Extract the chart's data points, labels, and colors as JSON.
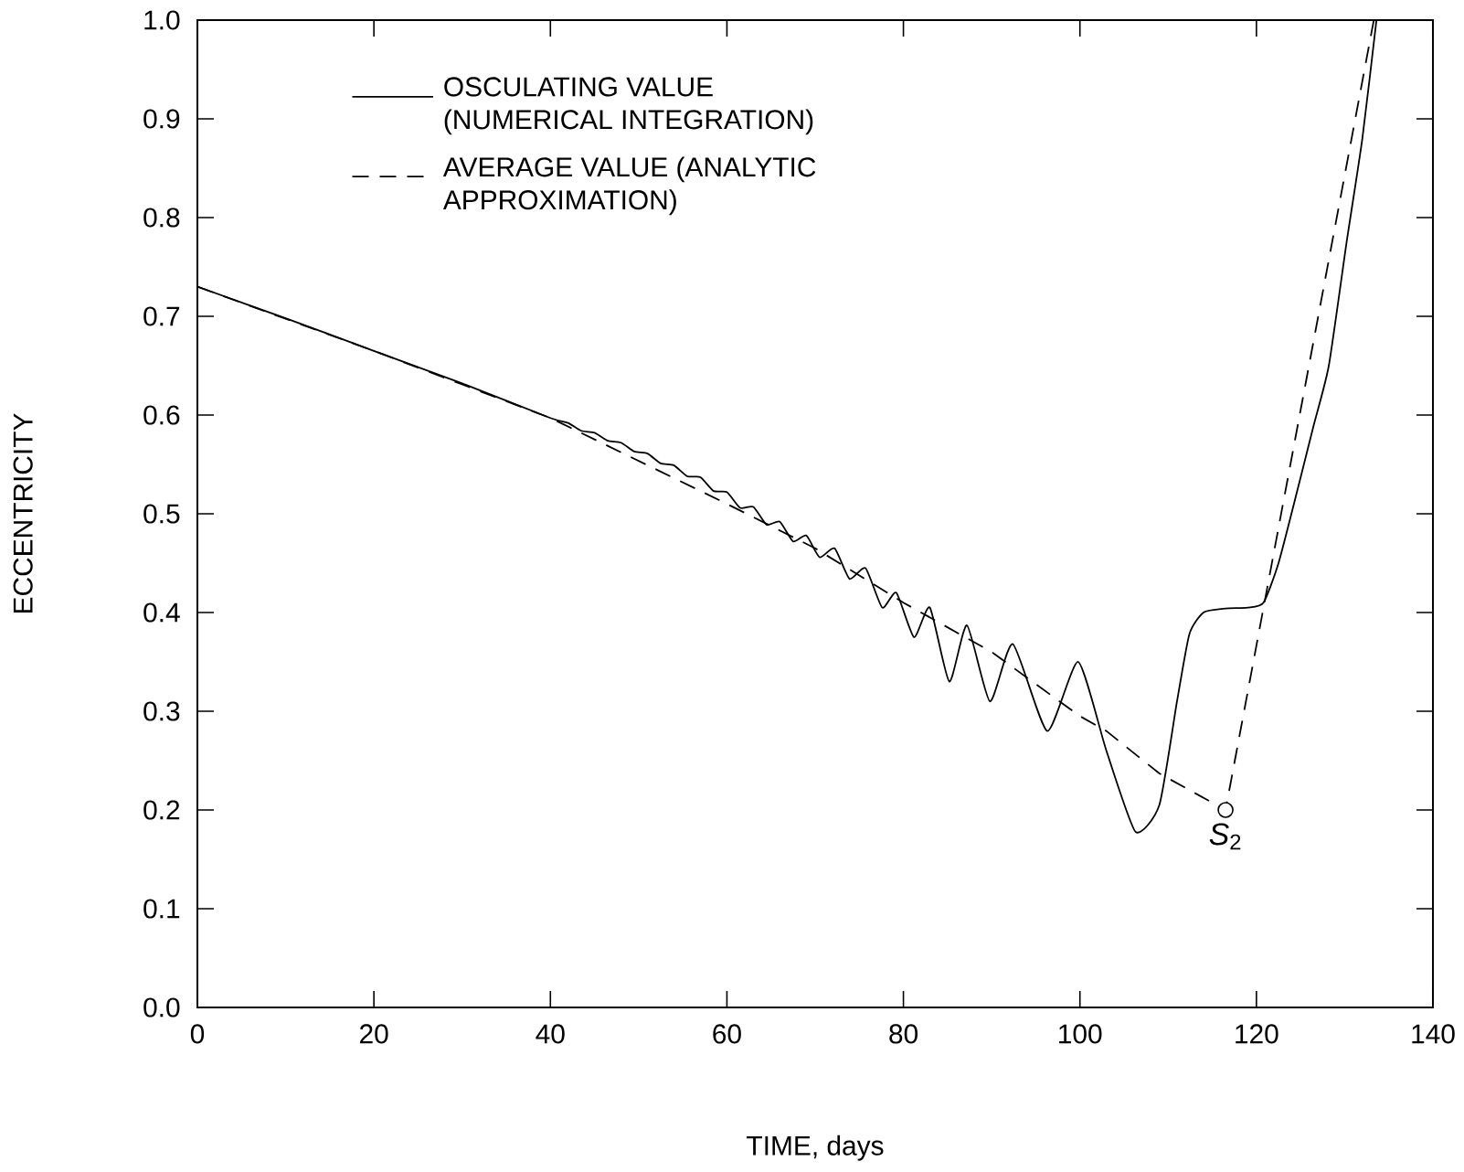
{
  "chart_data": {
    "type": "line",
    "xlabel": "TIME, days",
    "ylabel": "ECCENTRICITY",
    "xlim": [
      0,
      140
    ],
    "xticks": [
      0,
      20,
      40,
      60,
      80,
      100,
      120,
      140
    ],
    "ylim": [
      0,
      1
    ],
    "yticks": [
      {
        "value": 0,
        "label": "0.0"
      },
      0.1,
      0.2,
      0.3,
      0.4,
      0.5,
      0.6,
      0.7,
      0.8,
      0.9,
      {
        "value": 1,
        "label": "1.0"
      }
    ],
    "grid": false,
    "legend": "top left",
    "marker": "none",
    "series": [
      {
        "name": "OSCULATING VALUE (NUMERICAL INTEGRATION)",
        "color": "#000000",
        "line_style": "solid",
        "x": [
          0,
          10,
          20,
          30,
          40,
          42,
          43.5,
          45,
          46.5,
          48,
          49.5,
          51,
          52.5,
          54,
          55.5,
          57,
          58.5,
          60,
          61.5,
          63,
          64.5,
          66,
          67.5,
          69,
          70.5,
          72.2,
          73.9,
          75.7,
          77.6,
          79.2,
          81.2,
          83.0,
          85.2,
          87.2,
          89.8,
          92.4,
          96.3,
          99.8,
          103,
          106.3,
          109,
          111,
          112.4,
          114,
          116.5,
          119,
          120.8,
          122.5,
          124.7,
          126.5,
          128.2,
          130.2,
          132,
          133.6
        ],
        "values": [
          0.73,
          0.698,
          0.665,
          0.632,
          0.597,
          0.592,
          0.584,
          0.582,
          0.574,
          0.572,
          0.563,
          0.561,
          0.551,
          0.549,
          0.538,
          0.537,
          0.523,
          0.522,
          0.506,
          0.507,
          0.489,
          0.492,
          0.472,
          0.478,
          0.456,
          0.465,
          0.434,
          0.445,
          0.405,
          0.42,
          0.375,
          0.405,
          0.33,
          0.387,
          0.31,
          0.368,
          0.28,
          0.35,
          0.26,
          0.178,
          0.205,
          0.31,
          0.378,
          0.4,
          0.404,
          0.405,
          0.41,
          0.45,
          0.526,
          0.59,
          0.65,
          0.774,
          0.88,
          1.0
        ]
      },
      {
        "name": "AVERAGE VALUE (ANALYTIC APPROXIMATION)",
        "color": "#000000",
        "line_style": "dashed",
        "x": [
          0,
          20,
          40,
          60,
          70,
          80,
          90,
          100,
          103,
          109,
          116.5,
          133.3
        ],
        "values": [
          0.73,
          0.665,
          0.597,
          0.51,
          0.465,
          0.41,
          0.36,
          0.295,
          0.28,
          0.237,
          0.2,
          1.0
        ]
      }
    ],
    "annotations": [
      {
        "text": "*S*$_{2}$",
        "x": 116.5,
        "y": 0.2
      }
    ]
  }
}
